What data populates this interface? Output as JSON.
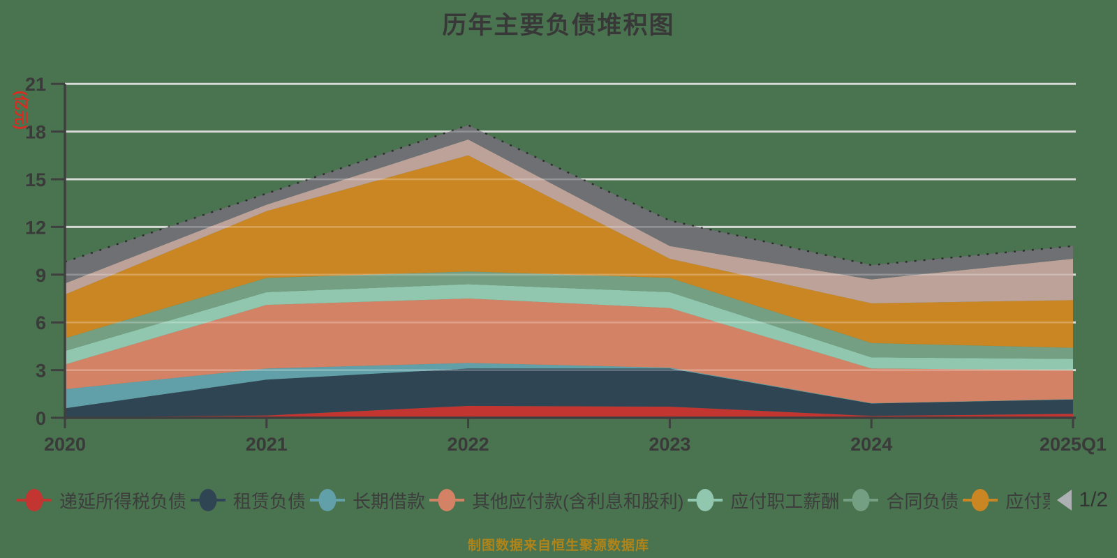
{
  "chart_data": {
    "type": "area",
    "stacked": true,
    "title": "历年主要负债堆积图",
    "unit_label": "(亿元)",
    "source_note": "制图数据来自恒生聚源数据库",
    "x": [
      "2020",
      "2021",
      "2022",
      "2023",
      "2024",
      "2025Q1"
    ],
    "ylim": [
      0,
      21
    ],
    "yticks": [
      0,
      3,
      6,
      9,
      12,
      15,
      18,
      21
    ],
    "grid": true,
    "legend_position": "bottom",
    "legend_page": "1/2",
    "series": [
      {
        "name": "递延所得税负债",
        "color": "#c23531",
        "legend_visible": true,
        "values": [
          0.02,
          0.15,
          0.75,
          0.7,
          0.12,
          0.25
        ]
      },
      {
        "name": "租赁负债",
        "color": "#2f4554",
        "legend_visible": true,
        "values": [
          0.58,
          2.25,
          2.35,
          2.4,
          0.78,
          0.9
        ]
      },
      {
        "name": "长期借款",
        "color": "#61a0a8",
        "legend_visible": true,
        "values": [
          1.2,
          0.7,
          0.35,
          0.05,
          0.02,
          0.02
        ]
      },
      {
        "name": "其他应付款(含利息和股利)",
        "color": "#d48265",
        "legend_visible": true,
        "values": [
          1.55,
          4.0,
          4.05,
          3.75,
          2.18,
          1.83
        ]
      },
      {
        "name": "应付职工薪酬",
        "color": "#91c7ae",
        "legend_visible": true,
        "values": [
          0.85,
          0.8,
          0.9,
          1.0,
          0.7,
          0.7
        ]
      },
      {
        "name": "合同负债",
        "color": "#749f83",
        "legend_visible": true,
        "values": [
          0.8,
          0.9,
          0.8,
          0.9,
          0.9,
          0.7
        ]
      },
      {
        "name": "应付票",
        "color": "#ca8622",
        "legend_visible": true,
        "truncated": true,
        "values": [
          2.75,
          4.2,
          7.3,
          1.2,
          2.5,
          3.0
        ]
      },
      {
        "name": "",
        "color": "#bda29a",
        "legend_visible": false,
        "values": [
          0.7,
          0.4,
          1.0,
          0.8,
          1.5,
          2.6
        ]
      },
      {
        "name": "",
        "color": "#6e7074",
        "legend_visible": false,
        "values": [
          1.35,
          0.7,
          0.9,
          1.6,
          0.9,
          0.8
        ]
      }
    ],
    "colors": {
      "background": "#4a734f",
      "gridline": "#cbcecb",
      "gridline_overlay": "rgba(255,255,255,0.25)",
      "axis": "#3f3f3f",
      "title_text": "#383838",
      "tick_text": "#3a3a3a",
      "axis_name_text": "#d92b21",
      "source_text": "#b08419",
      "top_dashed_line": "#2e2e2e",
      "pager_prev": "#aeb1b3",
      "pager_next": "#2f4554",
      "pager_text": "#333333"
    }
  }
}
